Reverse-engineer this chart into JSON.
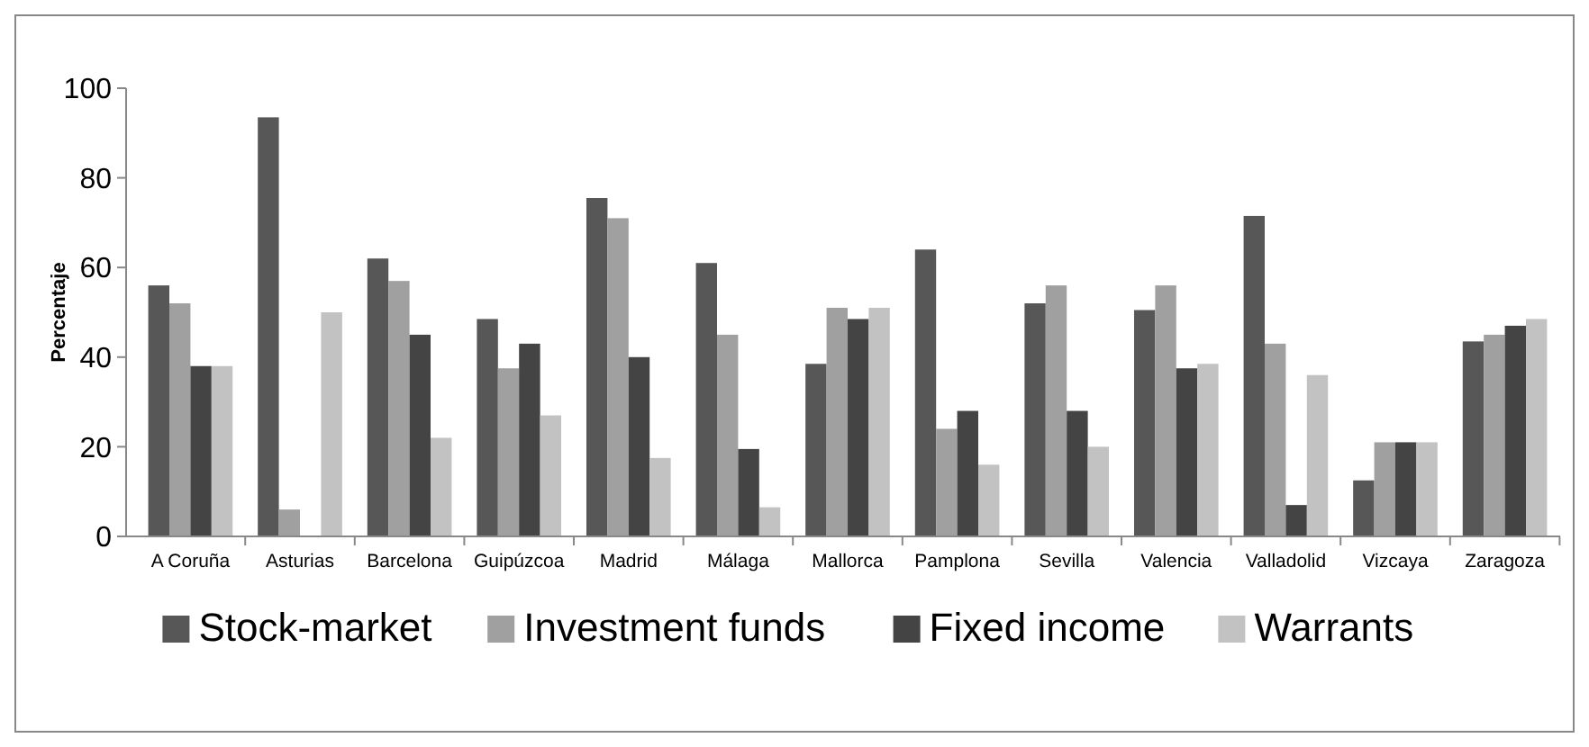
{
  "chart_data": {
    "type": "bar",
    "ylabel": "Percentaje",
    "categories": [
      "A Coruña",
      "Asturias",
      "Barcelona",
      "Guipúzcoa",
      "Madrid",
      "Málaga",
      "Mallorca",
      "Pamplona",
      "Sevilla",
      "Valencia",
      "Valladolid",
      "Vizcaya",
      "Zaragoza"
    ],
    "series": [
      {
        "name": "Stock-market",
        "color": "#575757",
        "values": [
          56,
          93.5,
          62,
          48.5,
          75.5,
          61,
          38.5,
          64,
          52,
          50.5,
          71.5,
          12.5,
          43.5
        ]
      },
      {
        "name": "Investment funds",
        "color": "#a0a0a0",
        "values": [
          52,
          6,
          57,
          37.5,
          71,
          45,
          51,
          24,
          56,
          56,
          43,
          21,
          45
        ]
      },
      {
        "name": "Fixed income",
        "color": "#444444",
        "values": [
          38,
          0,
          45,
          43,
          40,
          19.5,
          48.5,
          28,
          28,
          37.5,
          7,
          21,
          47
        ]
      },
      {
        "name": "Warrants",
        "color": "#c2c2c2",
        "values": [
          38,
          50,
          22,
          27,
          17.5,
          6.5,
          51,
          16,
          20,
          38.5,
          36,
          21,
          48.5
        ]
      }
    ],
    "ylim": [
      0,
      100
    ],
    "yticks": [
      0,
      20,
      40,
      60,
      80,
      100
    ],
    "grid": false,
    "legend": "bottom"
  }
}
